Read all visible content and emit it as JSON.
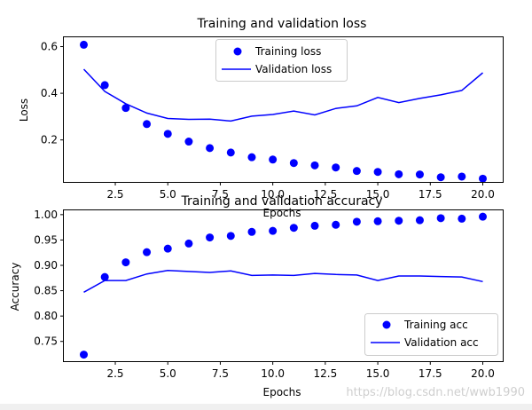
{
  "chart_data": [
    {
      "type": "line",
      "title": "Training and validation loss",
      "xlabel": "Epochs",
      "ylabel": "Loss",
      "xlim": [
        0.05,
        20.95
      ],
      "ylim": [
        0.02,
        0.64
      ],
      "xticks": [
        2.5,
        5.0,
        7.5,
        10.0,
        12.5,
        15.0,
        17.5,
        20.0
      ],
      "xtick_labels": [
        "2.5",
        "5.0",
        "7.5",
        "10.0",
        "12.5",
        "15.0",
        "17.5",
        "20.0"
      ],
      "yticks": [
        0.2,
        0.4,
        0.6
      ],
      "ytick_labels": [
        "0.2",
        "0.4",
        "0.6"
      ],
      "x": [
        1,
        2,
        3,
        4,
        5,
        6,
        7,
        8,
        9,
        10,
        11,
        12,
        13,
        14,
        15,
        16,
        17,
        18,
        19,
        20
      ],
      "series": [
        {
          "name": "Training loss",
          "style": "dots",
          "color": "#0000ff",
          "values": [
            0.608,
            0.435,
            0.337,
            0.268,
            0.226,
            0.193,
            0.165,
            0.146,
            0.126,
            0.116,
            0.101,
            0.091,
            0.082,
            0.067,
            0.063,
            0.053,
            0.052,
            0.04,
            0.043,
            0.034
          ]
        },
        {
          "name": "Validation loss",
          "style": "line",
          "color": "#0000ff",
          "values": [
            0.503,
            0.408,
            0.355,
            0.315,
            0.292,
            0.288,
            0.289,
            0.281,
            0.302,
            0.309,
            0.324,
            0.307,
            0.335,
            0.346,
            0.382,
            0.36,
            0.378,
            0.393,
            0.412,
            0.488
          ]
        }
      ],
      "legend": "top-center"
    },
    {
      "type": "line",
      "title": "Training and validation accuracy",
      "xlabel": "Epochs",
      "ylabel": "Accuracy",
      "xlim": [
        0.05,
        20.95
      ],
      "ylim": [
        0.711,
        1.0085
      ],
      "xticks": [
        2.5,
        5.0,
        7.5,
        10.0,
        12.5,
        15.0,
        17.5,
        20.0
      ],
      "xtick_labels": [
        "2.5",
        "5.0",
        "7.5",
        "10.0",
        "12.5",
        "15.0",
        "17.5",
        "20.0"
      ],
      "yticks": [
        0.75,
        0.8,
        0.85,
        0.9,
        0.95,
        1.0
      ],
      "ytick_labels": [
        "0.75",
        "0.80",
        "0.85",
        "0.90",
        "0.95",
        "1.00"
      ],
      "x": [
        1,
        2,
        3,
        4,
        5,
        6,
        7,
        8,
        9,
        10,
        11,
        12,
        13,
        14,
        15,
        16,
        17,
        18,
        19,
        20
      ],
      "series": [
        {
          "name": "Training acc",
          "style": "dots",
          "color": "#0000ff",
          "values": [
            0.724,
            0.877,
            0.906,
            0.926,
            0.933,
            0.943,
            0.955,
            0.958,
            0.966,
            0.968,
            0.974,
            0.978,
            0.98,
            0.986,
            0.987,
            0.988,
            0.989,
            0.993,
            0.992,
            0.996
          ]
        },
        {
          "name": "Validation acc",
          "style": "line",
          "color": "#0000ff",
          "values": [
            0.847,
            0.87,
            0.87,
            0.883,
            0.89,
            0.888,
            0.886,
            0.889,
            0.88,
            0.881,
            0.88,
            0.884,
            0.882,
            0.881,
            0.87,
            0.879,
            0.879,
            0.878,
            0.877,
            0.868
          ]
        }
      ],
      "legend": "bottom-right"
    }
  ],
  "watermark": "https://blog.csdn.net/wwb1990"
}
